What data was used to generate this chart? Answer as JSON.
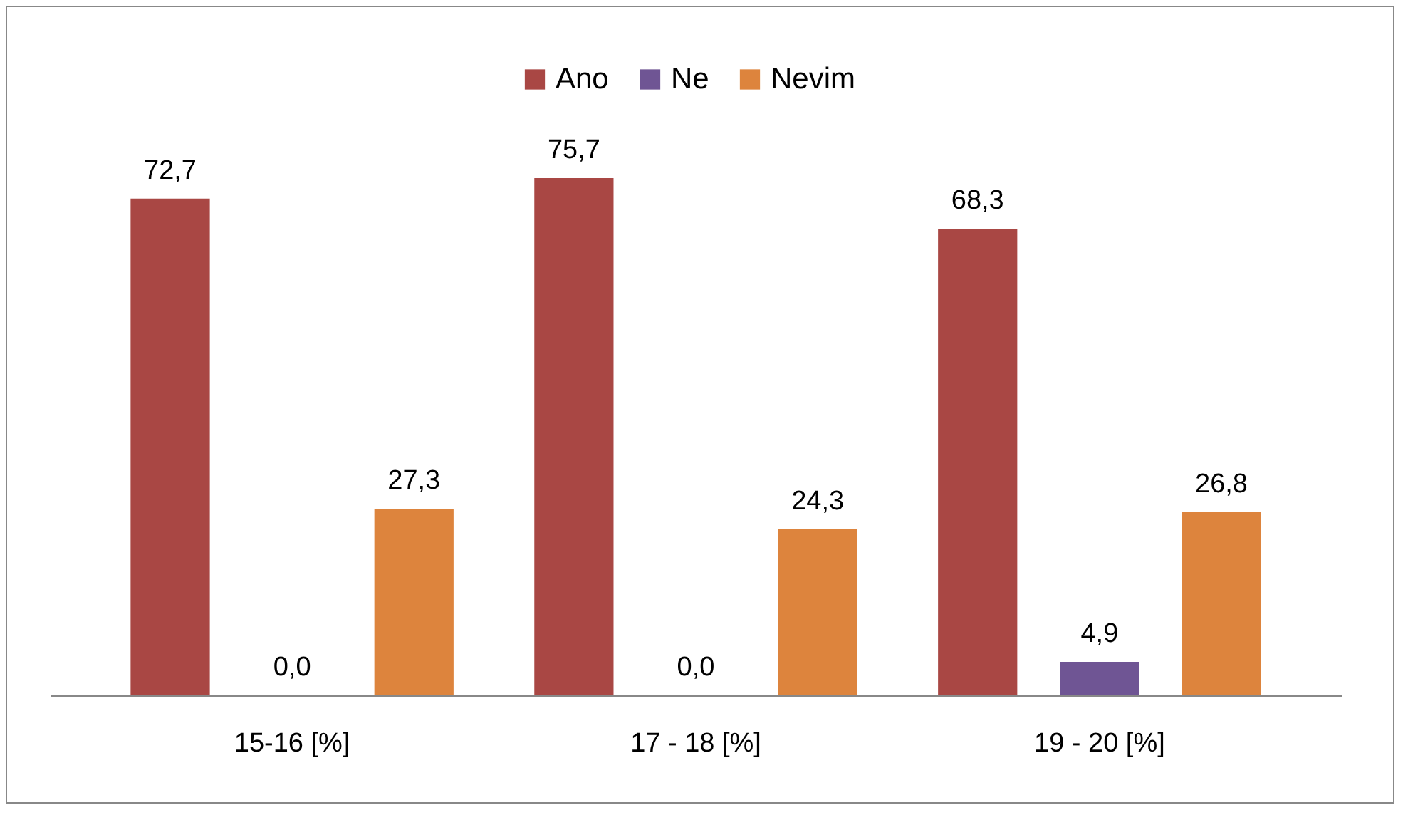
{
  "chart_data": {
    "type": "bar",
    "categories": [
      "15-16 [%]",
      "17 - 18 [%]",
      "19 - 20 [%]"
    ],
    "series": [
      {
        "name": "Ano",
        "color": "#a94744",
        "values": [
          72.7,
          75.7,
          68.3
        ],
        "value_labels": [
          "72,7",
          "75,7",
          "68,3"
        ]
      },
      {
        "name": "Ne",
        "color": "#6f5594",
        "values": [
          0.0,
          0.0,
          4.9
        ],
        "value_labels": [
          "0,0",
          "0,0",
          "4,9"
        ]
      },
      {
        "name": "Nevim",
        "color": "#dd843d",
        "values": [
          27.3,
          24.3,
          26.8
        ],
        "value_labels": [
          "27,3",
          "24,3",
          "26,8"
        ]
      }
    ],
    "legend": "top",
    "tick_labels": "x"
  }
}
